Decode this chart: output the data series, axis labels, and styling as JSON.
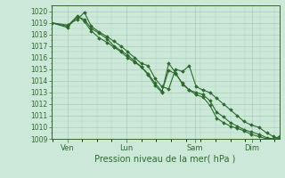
{
  "background_color": "#cce8d8",
  "grid_color": "#a0c8b0",
  "line_color": "#2d6a2d",
  "marker_color": "#2d6a2d",
  "xlabel": "Pression niveau de la mer( hPa )",
  "xlabel_fontsize": 7,
  "tick_label_color": "#2d6a2d",
  "ylim": [
    1009,
    1020.5
  ],
  "yticks": [
    1009,
    1010,
    1011,
    1012,
    1013,
    1014,
    1015,
    1016,
    1017,
    1018,
    1019,
    1020
  ],
  "xtick_labels": [
    "Ven",
    "Lun",
    "Sam",
    "Dim"
  ],
  "xtick_positions": [
    0.07,
    0.33,
    0.63,
    0.88
  ],
  "line1_x": [
    0.0,
    0.07,
    0.115,
    0.145,
    0.175,
    0.21,
    0.245,
    0.275,
    0.305,
    0.335,
    0.365,
    0.395,
    0.425,
    0.455,
    0.485,
    0.515,
    0.545,
    0.575,
    0.605,
    0.635,
    0.665,
    0.695,
    0.725,
    0.755,
    0.785,
    0.815,
    0.845,
    0.875,
    0.91,
    0.945,
    0.975,
    1.0
  ],
  "line1_y": [
    1019.0,
    1018.8,
    1019.3,
    1019.9,
    1018.7,
    1018.2,
    1017.8,
    1017.4,
    1017.0,
    1016.5,
    1016.0,
    1015.5,
    1015.3,
    1014.2,
    1013.5,
    1013.3,
    1015.0,
    1014.8,
    1015.3,
    1013.5,
    1013.2,
    1013.0,
    1012.5,
    1012.0,
    1011.5,
    1011.0,
    1010.5,
    1010.2,
    1010.0,
    1009.5,
    1009.2,
    1009.0
  ],
  "line2_x": [
    0.0,
    0.07,
    0.115,
    0.145,
    0.175,
    0.21,
    0.245,
    0.275,
    0.305,
    0.335,
    0.365,
    0.395,
    0.425,
    0.455,
    0.485,
    0.515,
    0.545,
    0.575,
    0.605,
    0.635,
    0.665,
    0.695,
    0.725,
    0.755,
    0.785,
    0.815,
    0.845,
    0.875,
    0.91,
    0.945,
    0.975,
    1.0
  ],
  "line2_y": [
    1019.0,
    1018.6,
    1019.5,
    1019.3,
    1018.5,
    1018.1,
    1017.6,
    1017.0,
    1016.6,
    1016.2,
    1015.7,
    1015.2,
    1014.6,
    1013.8,
    1013.1,
    1014.9,
    1014.6,
    1013.8,
    1013.2,
    1013.0,
    1012.8,
    1012.3,
    1011.3,
    1010.9,
    1010.4,
    1010.1,
    1009.8,
    1009.6,
    1009.4,
    1009.1,
    1009.0,
    1009.2
  ],
  "line3_x": [
    0.0,
    0.07,
    0.115,
    0.145,
    0.175,
    0.21,
    0.245,
    0.275,
    0.305,
    0.335,
    0.365,
    0.395,
    0.425,
    0.455,
    0.485,
    0.515,
    0.545,
    0.575,
    0.605,
    0.635,
    0.665,
    0.695,
    0.725,
    0.755,
    0.785,
    0.815,
    0.845,
    0.875,
    0.91,
    0.945,
    0.975,
    1.0
  ],
  "line3_y": [
    1019.0,
    1018.7,
    1019.6,
    1019.1,
    1018.3,
    1017.7,
    1017.3,
    1016.9,
    1016.5,
    1016.0,
    1015.6,
    1015.2,
    1014.5,
    1013.6,
    1013.0,
    1015.5,
    1014.7,
    1013.7,
    1013.2,
    1012.8,
    1012.6,
    1011.9,
    1010.8,
    1010.4,
    1010.1,
    1009.9,
    1009.7,
    1009.4,
    1009.2,
    1009.0,
    1008.9,
    1009.1
  ]
}
